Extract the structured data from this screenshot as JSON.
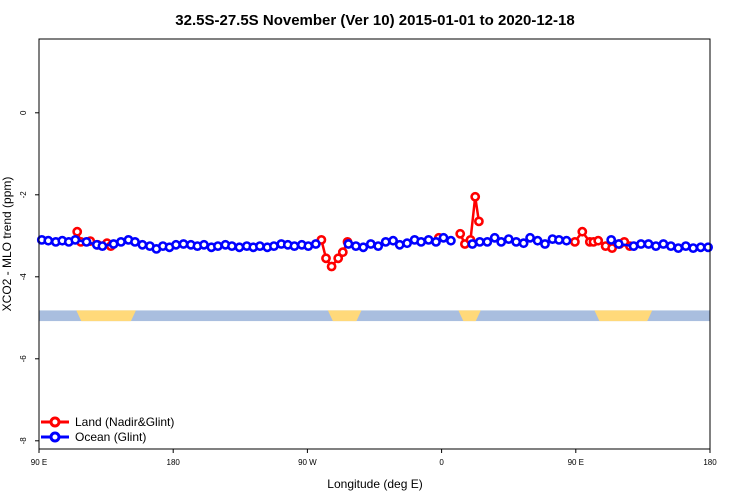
{
  "chart_data": {
    "type": "line",
    "title": "32.5S-27.5S November (Ver 10)   2015-01-01 to 2020-12-18",
    "xlabel": "Longitude (deg E)",
    "ylabel": "XCO2 - MLO trend (ppm)",
    "xlim": [
      90,
      450
    ],
    "ylim": [
      -8.2,
      1.8
    ],
    "x_ticks": [
      {
        "value": 90,
        "label": "90 E"
      },
      {
        "value": 162,
        "label": "180"
      },
      {
        "value": 234,
        "label": "90 W"
      },
      {
        "value": 306,
        "label": "0"
      },
      {
        "value": 378,
        "label": "90 E"
      },
      {
        "value": 450,
        "label": "180"
      }
    ],
    "y_ticks": [
      {
        "value": 0,
        "label": "0"
      },
      {
        "value": -2,
        "label": "-2"
      },
      {
        "value": -4,
        "label": "-4"
      },
      {
        "value": -6,
        "label": "-6"
      },
      {
        "value": -8,
        "label": "-8"
      }
    ],
    "grid": false,
    "legend_position": "bottom-left",
    "colors": {
      "land": "#ff0000",
      "ocean": "#0000ff",
      "surface_ocean": "#a9bedf",
      "surface_land": "#ffd97a"
    },
    "surface_band": {
      "y_top": -4.82,
      "y_bottom": -5.08,
      "land_segments": [
        [
          110,
          142
        ],
        [
          245,
          263
        ],
        [
          315,
          327
        ],
        [
          388,
          419
        ]
      ]
    },
    "series": [
      {
        "name": "Land (Nadir&Glint)",
        "color": "#ff0000",
        "x": [
          110.5,
          112.5,
          117.5,
          121.5,
          126.5,
          128.5,
          241.5,
          244,
          247,
          250.5,
          253,
          255.5,
          304.5,
          316,
          318.5,
          321.5,
          324,
          326,
          377.5,
          381.5,
          385.5,
          387.5,
          390,
          394,
          397.5,
          401.5,
          404,
          407
        ],
        "y": [
          -2.9,
          -3.15,
          -3.13,
          -3.22,
          -3.18,
          -3.25,
          -3.1,
          -3.55,
          -3.75,
          -3.55,
          -3.4,
          -3.15,
          -3.05,
          -2.95,
          -3.2,
          -3.1,
          -2.05,
          -2.65,
          -3.15,
          -2.9,
          -3.15,
          -3.15,
          -3.12,
          -3.25,
          -3.3,
          -3.2,
          -3.15,
          -3.25
        ]
      },
      {
        "name": "Ocean (Glint)",
        "color": "#0000ff",
        "x": [
          91.5,
          95,
          99,
          102.5,
          106,
          109.5,
          115.5,
          121,
          124,
          130,
          134,
          138,
          141.5,
          145.5,
          149.5,
          153,
          156.5,
          160,
          163.5,
          167.5,
          171.5,
          175,
          178.5,
          182.5,
          186,
          190,
          193.5,
          197.5,
          201.5,
          205,
          208.5,
          212.5,
          216,
          220,
          223.5,
          227,
          231,
          234.5,
          238.5,
          256,
          260,
          264,
          268,
          272,
          276,
          280,
          283.5,
          287.5,
          291.5,
          295,
          299,
          303,
          307,
          311,
          322.5,
          326.5,
          330.5,
          334.5,
          338,
          342,
          346,
          350,
          353.5,
          357.5,
          361.5,
          365.5,
          369,
          373,
          397,
          401,
          409,
          413,
          417,
          421,
          425,
          429,
          433,
          437,
          441,
          445,
          449
        ],
        "y": [
          -3.1,
          -3.12,
          -3.15,
          -3.12,
          -3.15,
          -3.1,
          -3.15,
          -3.22,
          -3.25,
          -3.2,
          -3.15,
          -3.1,
          -3.15,
          -3.22,
          -3.25,
          -3.32,
          -3.25,
          -3.28,
          -3.22,
          -3.2,
          -3.22,
          -3.25,
          -3.22,
          -3.28,
          -3.25,
          -3.22,
          -3.25,
          -3.28,
          -3.25,
          -3.28,
          -3.25,
          -3.28,
          -3.25,
          -3.2,
          -3.22,
          -3.25,
          -3.22,
          -3.25,
          -3.2,
          -3.2,
          -3.25,
          -3.28,
          -3.2,
          -3.25,
          -3.15,
          -3.12,
          -3.22,
          -3.18,
          -3.1,
          -3.15,
          -3.1,
          -3.15,
          -3.05,
          -3.12,
          -3.2,
          -3.15,
          -3.15,
          -3.05,
          -3.15,
          -3.08,
          -3.15,
          -3.18,
          -3.05,
          -3.12,
          -3.2,
          -3.08,
          -3.1,
          -3.12,
          -3.1,
          -3.2,
          -3.25,
          -3.2,
          -3.2,
          -3.25,
          -3.2,
          -3.25,
          -3.3,
          -3.25,
          -3.3,
          -3.28,
          -3.28
        ]
      }
    ]
  }
}
